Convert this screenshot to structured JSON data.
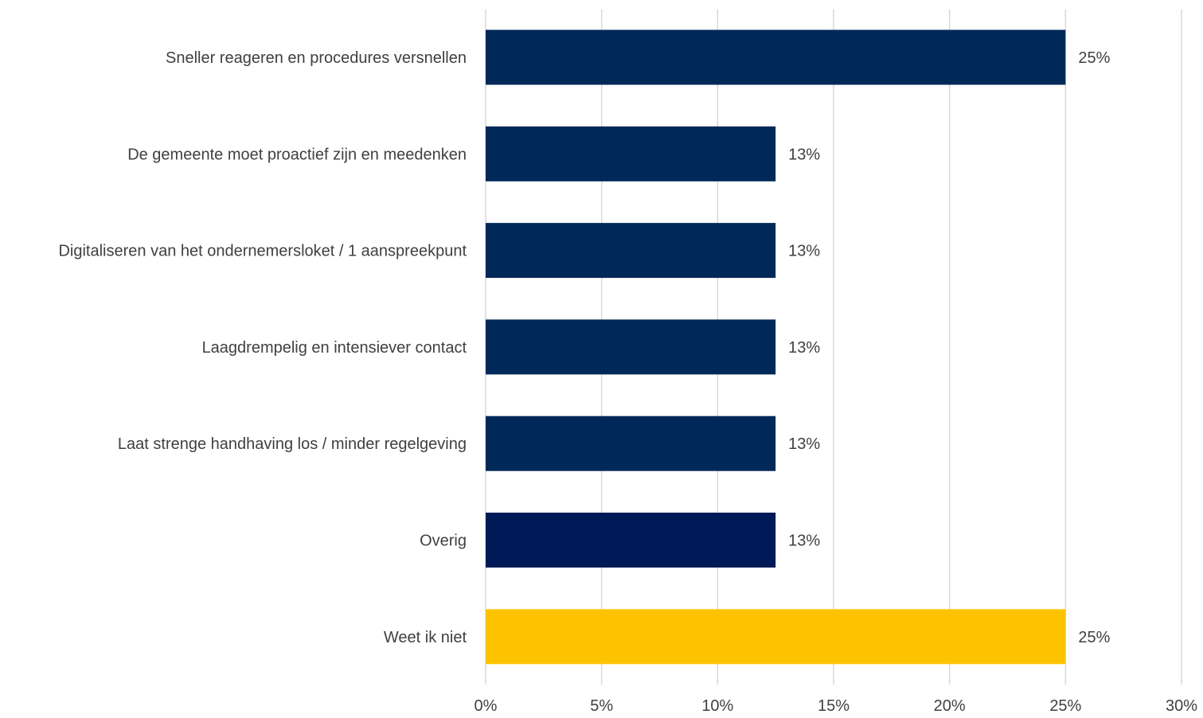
{
  "chart_data": {
    "type": "bar",
    "orientation": "horizontal",
    "categories": [
      "Sneller reageren en procedures versnellen",
      "De gemeente moet proactief zijn en meedenken",
      "Digitaliseren van het ondernemersloket / 1 aanspreekpunt",
      "Laagdrempelig en intensiever contact",
      "Laat strenge handhaving los / minder regelgeving",
      "Overig",
      "Weet ik niet"
    ],
    "values": [
      25,
      12.5,
      12.5,
      12.5,
      12.5,
      12.5,
      25
    ],
    "data_labels": [
      "25%",
      "13%",
      "13%",
      "13%",
      "13%",
      "13%",
      "25%"
    ],
    "colors": [
      "#002858",
      "#002858",
      "#002858",
      "#002858",
      "#002858",
      "#001a57",
      "#fdc300"
    ],
    "xlim": [
      0,
      30
    ],
    "x_ticks": [
      0,
      5,
      10,
      15,
      20,
      25,
      30
    ],
    "x_tick_labels": [
      "0%",
      "5%",
      "10%",
      "15%",
      "20%",
      "25%",
      "30%"
    ],
    "grid": "vertical",
    "legend": "none"
  }
}
